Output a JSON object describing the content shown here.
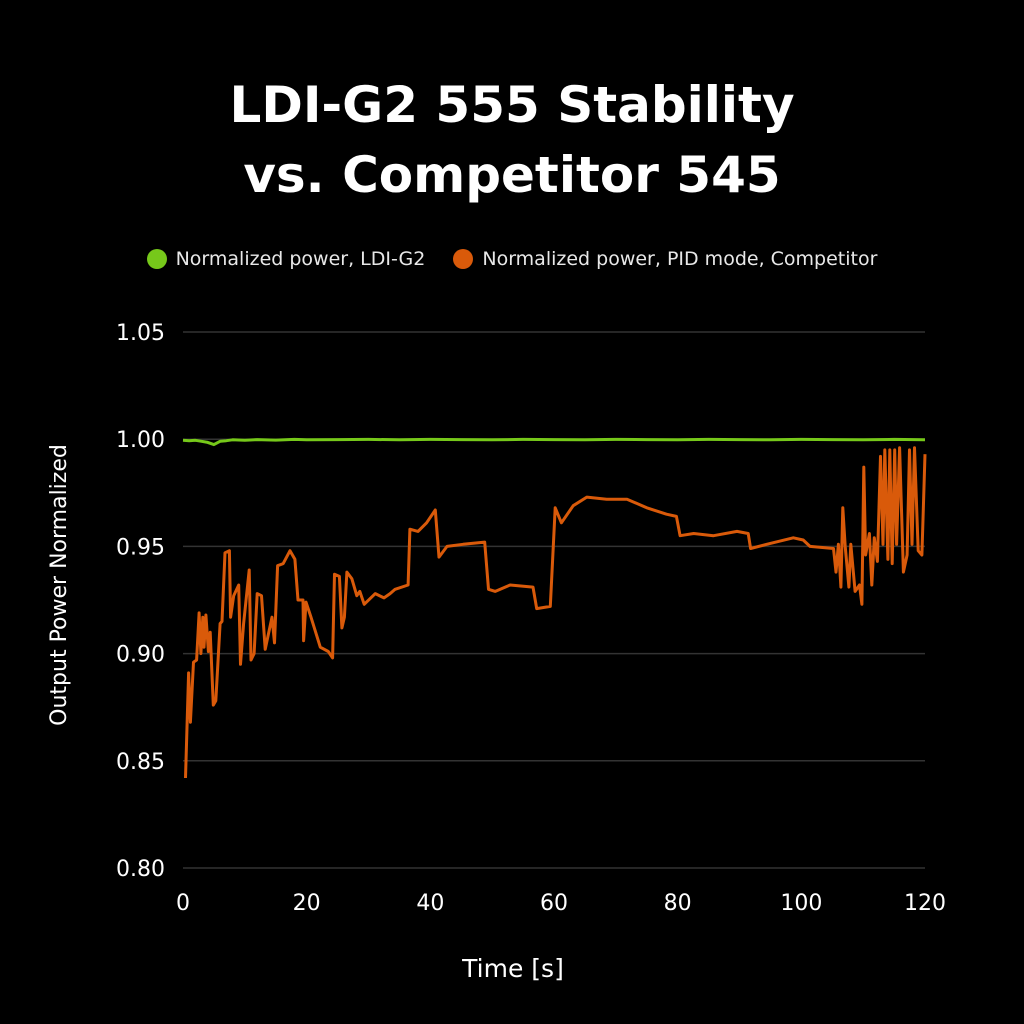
{
  "chart_data": {
    "type": "line",
    "title_lines": [
      "LDI-G2 555 Stability",
      "vs. Competitor 545"
    ],
    "xlabel": "Time [s]",
    "ylabel": "Output Power Normalized",
    "xlim": [
      0,
      120
    ],
    "ylim": [
      0.8,
      1.05
    ],
    "xticks": [
      0,
      20,
      40,
      60,
      80,
      100,
      120
    ],
    "yticks": [
      0.8,
      0.85,
      0.9,
      0.95,
      1.0,
      1.05
    ],
    "ytick_labels": [
      "0.80",
      "0.85",
      "0.90",
      "0.95",
      "1.00",
      "1.05"
    ],
    "grid": "horizontal",
    "legend_position": "top",
    "series": [
      {
        "name": "Normalized power, LDI-G2",
        "color": "#76c81a",
        "x": [
          0,
          1,
          2,
          3,
          4,
          5,
          6,
          7,
          8,
          10,
          12,
          15,
          18,
          20,
          25,
          30,
          35,
          40,
          45,
          50,
          55,
          60,
          65,
          70,
          75,
          80,
          85,
          90,
          95,
          100,
          105,
          110,
          115,
          120
        ],
        "y": [
          0.9995,
          0.9993,
          0.9995,
          0.999,
          0.9985,
          0.9975,
          0.999,
          0.9993,
          0.9997,
          0.9995,
          0.9998,
          0.9996,
          0.9999,
          0.9997,
          0.9998,
          0.9999,
          0.9997,
          0.9999,
          0.9998,
          0.9997,
          0.9999,
          0.9998,
          0.9997,
          0.9999,
          0.9998,
          0.9997,
          0.9999,
          0.9998,
          0.9997,
          0.9999,
          0.9998,
          0.9997,
          0.9999,
          0.9997
        ]
      },
      {
        "name": "Normalized power, PID mode, Competitor",
        "color": "#d95a0a",
        "x": [
          0.4,
          0.9,
          1.2,
          1.7,
          2.2,
          2.6,
          2.9,
          3.2,
          3.4,
          3.7,
          4.1,
          4.4,
          4.9,
          5.3,
          6.0,
          6.3,
          6.8,
          7.5,
          7.7,
          8.2,
          9.0,
          9.3,
          9.8,
          10.7,
          11.0,
          11.5,
          12.0,
          12.7,
          13.3,
          14.4,
          14.8,
          15.3,
          16.2,
          17.3,
          18.1,
          18.6,
          19.4,
          19.5,
          19.9,
          20.7,
          22.2,
          23.5,
          24.2,
          24.5,
          25.3,
          25.7,
          26.1,
          26.5,
          27.3,
          28.1,
          28.6,
          29.3,
          31.1,
          32.5,
          33.5,
          34.3,
          36.4,
          36.7,
          38.0,
          39.4,
          40.8,
          41.4,
          42.7,
          45.3,
          48.8,
          49.4,
          50.5,
          52.9,
          56.6,
          57.2,
          59.4,
          60.2,
          61.2,
          63.1,
          65.3,
          68.5,
          71.8,
          75.0,
          78.2,
          79.8,
          80.4,
          82.6,
          85.8,
          89.6,
          91.4,
          91.8,
          94.4,
          98.7,
          100.3,
          101.4,
          105.2,
          105.6,
          106.0,
          106.4,
          106.7,
          107.1,
          107.7,
          108.0,
          108.7,
          109.4,
          109.8,
          110.1,
          110.4,
          111.0,
          111.4,
          111.8,
          112.3,
          112.8,
          113.2,
          113.5,
          114.0,
          114.3,
          114.7,
          115.1,
          115.4,
          115.9,
          116.5,
          117.1,
          117.5,
          117.9,
          118.3,
          118.9,
          119.5,
          120.0
        ],
        "y": [
          0.842,
          0.891,
          0.868,
          0.896,
          0.897,
          0.919,
          0.9,
          0.917,
          0.903,
          0.918,
          0.901,
          0.91,
          0.876,
          0.878,
          0.914,
          0.915,
          0.947,
          0.948,
          0.917,
          0.927,
          0.932,
          0.895,
          0.914,
          0.939,
          0.897,
          0.9,
          0.928,
          0.927,
          0.902,
          0.917,
          0.905,
          0.941,
          0.942,
          0.948,
          0.944,
          0.925,
          0.925,
          0.906,
          0.924,
          0.917,
          0.903,
          0.901,
          0.898,
          0.937,
          0.936,
          0.912,
          0.917,
          0.938,
          0.935,
          0.927,
          0.929,
          0.923,
          0.928,
          0.926,
          0.928,
          0.93,
          0.932,
          0.958,
          0.957,
          0.961,
          0.967,
          0.945,
          0.95,
          0.951,
          0.952,
          0.93,
          0.929,
          0.932,
          0.931,
          0.921,
          0.922,
          0.968,
          0.961,
          0.969,
          0.973,
          0.972,
          0.972,
          0.968,
          0.965,
          0.964,
          0.955,
          0.956,
          0.955,
          0.957,
          0.956,
          0.949,
          0.951,
          0.954,
          0.953,
          0.95,
          0.949,
          0.938,
          0.951,
          0.931,
          0.968,
          0.95,
          0.931,
          0.951,
          0.929,
          0.932,
          0.923,
          0.987,
          0.946,
          0.956,
          0.932,
          0.954,
          0.943,
          0.992,
          0.951,
          0.995,
          0.944,
          0.995,
          0.942,
          0.995,
          0.951,
          0.996,
          0.938,
          0.946,
          0.995,
          0.951,
          0.996,
          0.948,
          0.946,
          0.993
        ]
      }
    ]
  }
}
